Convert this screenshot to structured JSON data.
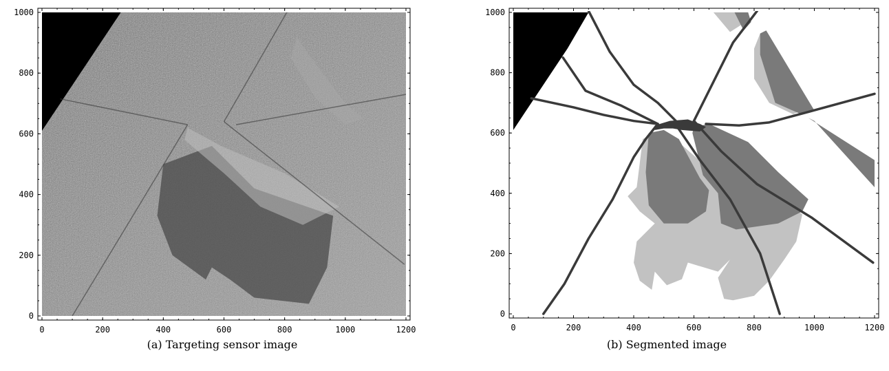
{
  "chart_data": [
    {
      "type": "image",
      "caption": "(a) Targeting sensor image",
      "xlim": [
        0,
        1200
      ],
      "ylim": [
        0,
        1000
      ],
      "xticks": [
        "0",
        "200",
        "400",
        "600",
        "800",
        "1000",
        "1200"
      ],
      "yticks": [
        "0",
        "200",
        "400",
        "600",
        "800",
        "1000"
      ],
      "colors": {
        "dark": "#000000",
        "sonar_mid": "#7a7a7a",
        "sonar_shadow": "#4a4a4a"
      }
    },
    {
      "type": "segmentation-map",
      "caption": "(b) Segmented image",
      "xlim": [
        0,
        1200
      ],
      "ylim": [
        0,
        1000
      ],
      "xticks": [
        "0",
        "200",
        "400",
        "600",
        "800",
        "1000",
        "1200"
      ],
      "yticks": [
        "0",
        "200",
        "400",
        "600",
        "800",
        "1000"
      ],
      "colors": {
        "black": "#000000",
        "dark": "#3a3a3a",
        "mid": "#7a7a7a",
        "light": "#c2c2c2"
      },
      "regions": [
        {
          "shade": "black",
          "points": [
            [
              0,
              1000
            ],
            [
              250,
              1000
            ],
            [
              180,
              880
            ],
            [
              100,
              760
            ],
            [
              0,
              610
            ]
          ]
        },
        {
          "shade": "light",
          "points": [
            [
              665,
              1000
            ],
            [
              745,
              1000
            ],
            [
              775,
              970
            ],
            [
              720,
              935
            ]
          ]
        },
        {
          "shade": "mid",
          "points": [
            [
              735,
              1000
            ],
            [
              780,
              1000
            ],
            [
              790,
              968
            ],
            [
              765,
              940
            ]
          ]
        },
        {
          "shade": "light",
          "points": [
            [
              800,
              880
            ],
            [
              820,
              930
            ],
            [
              970,
              680
            ],
            [
              930,
              662
            ],
            [
              850,
              700
            ],
            [
              800,
              780
            ]
          ]
        },
        {
          "shade": "mid",
          "points": [
            [
              820,
              930
            ],
            [
              840,
              940
            ],
            [
              1000,
              675
            ],
            [
              950,
              665
            ],
            [
              870,
              700
            ],
            [
              820,
              860
            ]
          ]
        },
        {
          "shade": "mid",
          "points": [
            [
              980,
              650
            ],
            [
              1200,
              510
            ],
            [
              1200,
              420
            ],
            [
              1000,
              640
            ]
          ]
        },
        {
          "shade": "light",
          "points": [
            [
              430,
              580
            ],
            [
              410,
              420
            ],
            [
              380,
              390
            ],
            [
              420,
              340
            ],
            [
              470,
              300
            ],
            [
              410,
              240
            ],
            [
              400,
              170
            ],
            [
              420,
              110
            ],
            [
              460,
              80
            ],
            [
              470,
              140
            ],
            [
              510,
              95
            ],
            [
              560,
              115
            ],
            [
              580,
              170
            ],
            [
              680,
              140
            ],
            [
              720,
              180
            ],
            [
              680,
              120
            ],
            [
              700,
              50
            ],
            [
              730,
              45
            ],
            [
              800,
              60
            ],
            [
              850,
              110
            ],
            [
              900,
              180
            ],
            [
              940,
              240
            ],
            [
              960,
              330
            ],
            [
              920,
              360
            ],
            [
              860,
              380
            ],
            [
              720,
              420
            ],
            [
              560,
              560
            ],
            [
              470,
              600
            ]
          ]
        },
        {
          "shade": "mid",
          "points": [
            [
              450,
              600
            ],
            [
              500,
              610
            ],
            [
              550,
              580
            ],
            [
              620,
              450
            ],
            [
              650,
              410
            ],
            [
              640,
              340
            ],
            [
              580,
              300
            ],
            [
              500,
              300
            ],
            [
              450,
              360
            ],
            [
              440,
              470
            ]
          ]
        },
        {
          "shade": "mid",
          "points": [
            [
              600,
              620
            ],
            [
              650,
              630
            ],
            [
              780,
              570
            ],
            [
              880,
              470
            ],
            [
              980,
              380
            ],
            [
              960,
              340
            ],
            [
              880,
              300
            ],
            [
              740,
              280
            ],
            [
              690,
              300
            ],
            [
              680,
              400
            ],
            [
              630,
              460
            ],
            [
              595,
              600
            ]
          ]
        },
        {
          "shade": "dark",
          "points": [
            [
              470,
              625
            ],
            [
              520,
              640
            ],
            [
              580,
              645
            ],
            [
              620,
              630
            ],
            [
              640,
              620
            ],
            [
              620,
              605
            ],
            [
              560,
              610
            ],
            [
              530,
              615
            ],
            [
              500,
              615
            ],
            [
              470,
              610
            ]
          ]
        }
      ],
      "lines": [
        [
          [
            100,
            0
          ],
          [
            170,
            100
          ],
          [
            250,
            250
          ],
          [
            330,
            380
          ],
          [
            400,
            520
          ],
          [
            440,
            580
          ],
          [
            480,
            630
          ]
        ],
        [
          [
            480,
            630
          ],
          [
            400,
            640
          ],
          [
            300,
            660
          ],
          [
            200,
            685
          ],
          [
            60,
            715
          ]
        ],
        [
          [
            480,
            630
          ],
          [
            420,
            660
          ],
          [
            360,
            690
          ],
          [
            300,
            715
          ],
          [
            240,
            740
          ],
          [
            165,
            850
          ]
        ],
        [
          [
            540,
            640
          ],
          [
            480,
            700
          ],
          [
            400,
            760
          ],
          [
            320,
            870
          ],
          [
            250,
            1005
          ]
        ],
        [
          [
            600,
            640
          ],
          [
            650,
            740
          ],
          [
            730,
            900
          ],
          [
            810,
            1005
          ]
        ],
        [
          [
            640,
            630
          ],
          [
            750,
            625
          ],
          [
            850,
            635
          ],
          [
            980,
            670
          ],
          [
            1200,
            730
          ]
        ],
        [
          [
            600,
            640
          ],
          [
            690,
            540
          ],
          [
            810,
            430
          ],
          [
            990,
            320
          ],
          [
            1195,
            170
          ]
        ],
        [
          [
            545,
            620
          ],
          [
            620,
            510
          ],
          [
            720,
            380
          ],
          [
            820,
            200
          ],
          [
            885,
            0
          ]
        ]
      ]
    }
  ]
}
